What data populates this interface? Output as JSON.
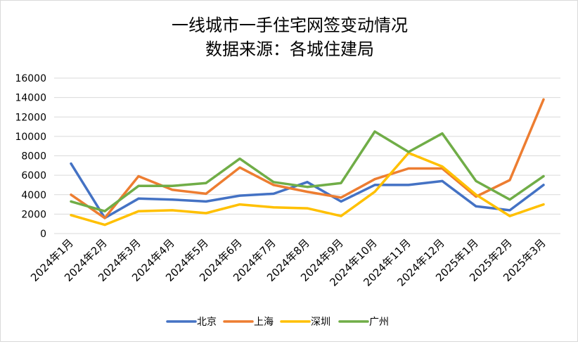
{
  "chart_data": {
    "type": "line",
    "title_line1": "一线城市一手住宅网签变动情况",
    "title_line2": "数据来源：各城住建局",
    "xlabel": "",
    "ylabel": "",
    "ylim": [
      0,
      16000
    ],
    "yticks": [
      "0",
      "2000",
      "4000",
      "6000",
      "8000",
      "10000",
      "12000",
      "14000",
      "16000"
    ],
    "categories": [
      "2024年1月",
      "2024年2月",
      "2024年3月",
      "2024年4月",
      "2024年5月",
      "2024年6月",
      "2024年7月",
      "2024年8月",
      "2024年9月",
      "2024年10月",
      "2024年11月",
      "2024年12月",
      "2025年1月",
      "2025年2月",
      "2025年3月"
    ],
    "grid": true,
    "legend_position": "bottom",
    "series": [
      {
        "name": "北京",
        "color": "#4472C4",
        "values": [
          7200,
          1600,
          3600,
          3500,
          3300,
          3900,
          4100,
          5300,
          3300,
          5000,
          5000,
          5400,
          2800,
          2400,
          5000
        ]
      },
      {
        "name": "上海",
        "color": "#ED7D31",
        "values": [
          4000,
          1600,
          5900,
          4500,
          4100,
          6800,
          5000,
          4300,
          3700,
          5600,
          6700,
          6700,
          3800,
          5500,
          13800
        ]
      },
      {
        "name": "深圳",
        "color": "#FFC000",
        "values": [
          1900,
          900,
          2300,
          2400,
          2100,
          3000,
          2700,
          2600,
          1800,
          4300,
          8300,
          6900,
          4000,
          1800,
          3000
        ]
      },
      {
        "name": "广州",
        "color": "#70AD47",
        "values": [
          3300,
          2300,
          4900,
          4900,
          5200,
          7700,
          5300,
          4800,
          5200,
          10500,
          8400,
          10300,
          5400,
          3500,
          5900
        ]
      }
    ]
  }
}
